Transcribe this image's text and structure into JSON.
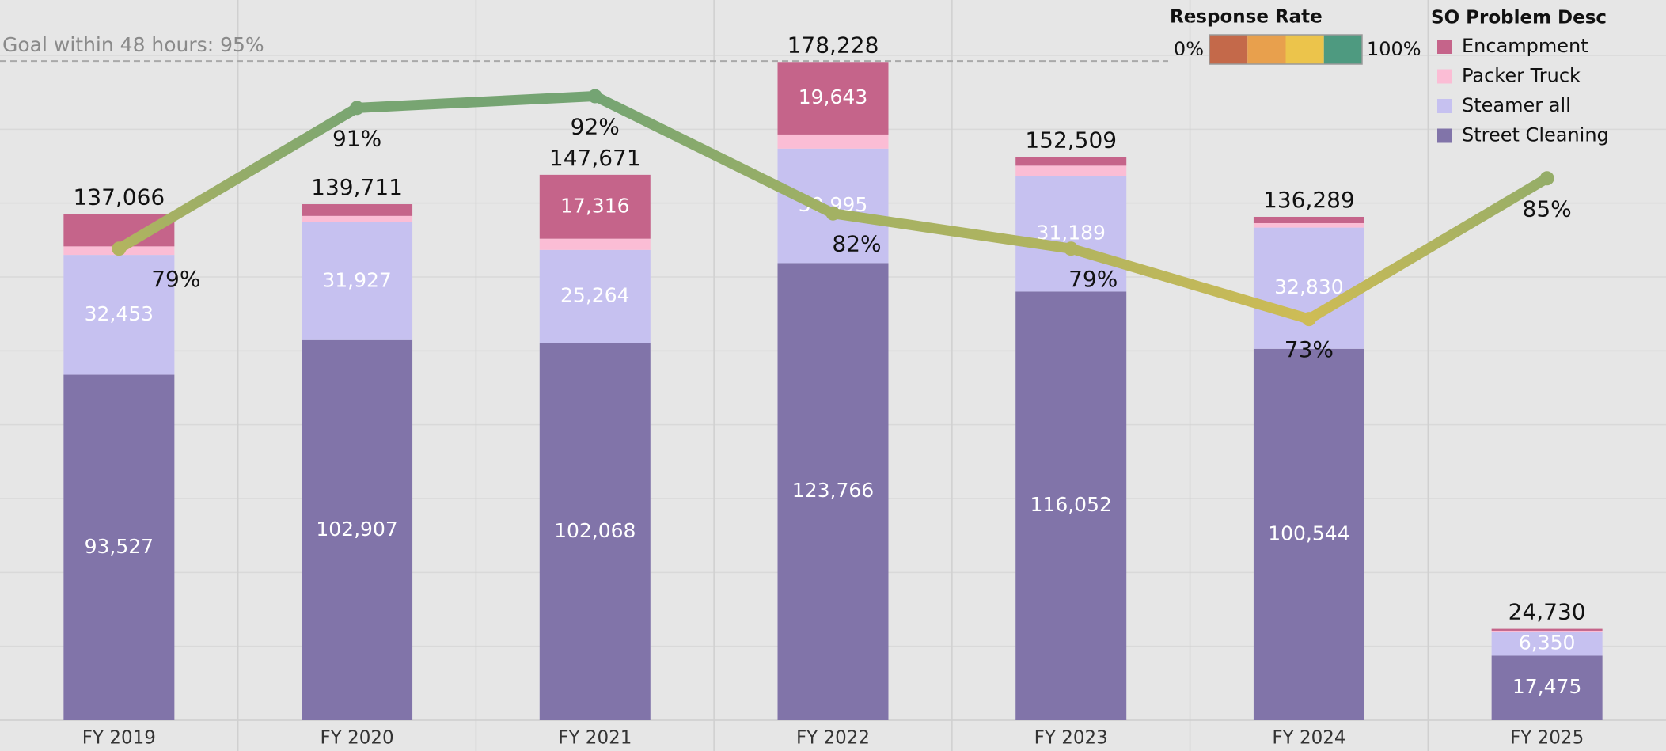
{
  "chart_data": {
    "type": "stacked_bar_line",
    "categories": [
      "FY 2019",
      "FY 2020",
      "FY 2021",
      "FY 2022",
      "FY 2023",
      "FY 2024",
      "FY 2025"
    ],
    "series": [
      {
        "name": "Street Cleaning",
        "color": "#8174a9",
        "values": [
          93527,
          102907,
          102068,
          123766,
          116052,
          100544,
          17475
        ],
        "value_labels": [
          "93,527",
          "102,907",
          "102,068",
          "123,766",
          "116,052",
          "100,544",
          "17,475"
        ]
      },
      {
        "name": "Steamer all",
        "color": "#c6c1f0",
        "values": [
          32453,
          31927,
          25264,
          30995,
          31189,
          32830,
          6350
        ],
        "value_labels": [
          "32,453",
          "31,927",
          "25,264",
          "30,995",
          "31,189",
          "32,830",
          "6,350"
        ]
      },
      {
        "name": "Packer Truck",
        "color": "#fbbdd5",
        "values": [
          2300,
          1700,
          3023,
          3824,
          2900,
          1200,
          400
        ],
        "value_labels": [
          null,
          null,
          null,
          null,
          null,
          null,
          null
        ]
      },
      {
        "name": "Encampment",
        "color": "#c5648a",
        "values": [
          8786,
          3177,
          17316,
          19643,
          2368,
          1715,
          505
        ],
        "value_labels": [
          null,
          null,
          "17,316",
          "19,643",
          null,
          null,
          null
        ]
      }
    ],
    "totals": [
      137066,
      139711,
      147671,
      178228,
      152509,
      136289,
      24730
    ],
    "total_labels": [
      "137,066",
      "139,711",
      "147,671",
      "178,228",
      "152,509",
      "136,289",
      "24,730"
    ],
    "line_series": {
      "axis": "y2",
      "values": [
        79,
        91,
        92,
        82,
        79,
        73,
        85
      ],
      "value_labels": [
        "79%",
        "91%",
        "92%",
        "82%",
        "79%",
        "73%",
        "85%"
      ]
    },
    "goal": {
      "axis": "y2",
      "value": 95,
      "label": "Goal within 48 hours: 95%"
    },
    "ylim": [
      0,
      195000
    ],
    "yticks": [
      0,
      20000,
      40000,
      60000,
      80000,
      100000,
      120000,
      140000,
      160000,
      180000
    ],
    "y2lim": [
      38.8,
      100.2
    ],
    "grid": true,
    "color_scale": {
      "title": "Response Rate",
      "min": 0,
      "max": 100,
      "min_label": "0%",
      "max_label": "100%",
      "colors": [
        "#c4694a",
        "#e8a04d",
        "#ecc44b",
        "#4e9a80"
      ]
    },
    "legend_title": "SO Problem Desc",
    "legend_position": "top-right"
  }
}
